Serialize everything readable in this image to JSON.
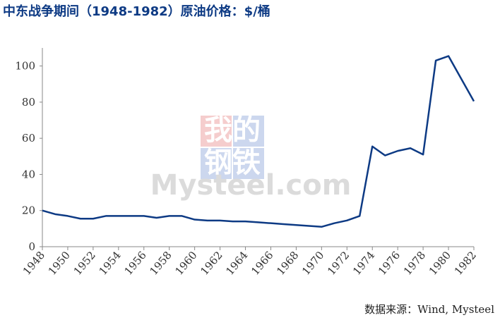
{
  "chart_data": {
    "type": "line",
    "title": "中东战争期间（1948-1982）原油价格：$/桶",
    "source": "数据来源：Wind, Mysteel",
    "watermark": [
      "我的",
      "钢铁",
      "Mysteel.com"
    ],
    "x": [
      1948,
      1949,
      1950,
      1951,
      1952,
      1953,
      1954,
      1955,
      1956,
      1957,
      1958,
      1959,
      1960,
      1961,
      1962,
      1963,
      1964,
      1965,
      1966,
      1967,
      1968,
      1969,
      1970,
      1971,
      1972,
      1973,
      1974,
      1975,
      1976,
      1977,
      1978,
      1979,
      1980,
      1981,
      1982
    ],
    "values": [
      20,
      18,
      17,
      15.5,
      15.5,
      17,
      17,
      17,
      17,
      16,
      17,
      17,
      15,
      14.5,
      14.5,
      14,
      14,
      13.5,
      13,
      12.5,
      12,
      11.5,
      11,
      13,
      14.5,
      17,
      55.5,
      50.5,
      53,
      54.5,
      51,
      103,
      105.5,
      93,
      80.5
    ],
    "color": "#0d3a84",
    "xlim": [
      1948,
      1982
    ],
    "xticks": [
      1948,
      1950,
      1952,
      1954,
      1956,
      1958,
      1960,
      1962,
      1964,
      1966,
      1968,
      1970,
      1972,
      1974,
      1976,
      1978,
      1980,
      1982
    ],
    "ylim": [
      0,
      110
    ],
    "yticks": [
      0,
      20,
      40,
      60,
      80,
      100
    ],
    "grid": false
  }
}
